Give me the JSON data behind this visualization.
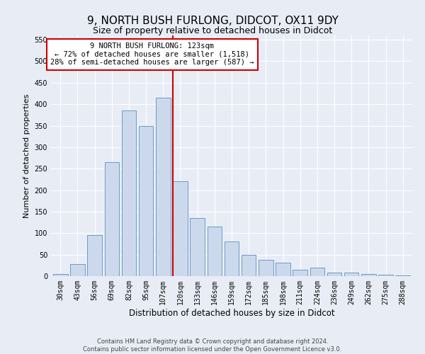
{
  "title": "9, NORTH BUSH FURLONG, DIDCOT, OX11 9DY",
  "subtitle": "Size of property relative to detached houses in Didcot",
  "xlabel": "Distribution of detached houses by size in Didcot",
  "ylabel": "Number of detached properties",
  "categories": [
    "30sqm",
    "43sqm",
    "56sqm",
    "69sqm",
    "82sqm",
    "95sqm",
    "107sqm",
    "120sqm",
    "133sqm",
    "146sqm",
    "159sqm",
    "172sqm",
    "185sqm",
    "198sqm",
    "211sqm",
    "224sqm",
    "236sqm",
    "249sqm",
    "262sqm",
    "275sqm",
    "288sqm"
  ],
  "values": [
    5,
    28,
    95,
    265,
    385,
    350,
    415,
    220,
    135,
    115,
    80,
    50,
    38,
    32,
    15,
    20,
    8,
    8,
    5,
    3,
    2
  ],
  "bar_color": "#ccd9ec",
  "bar_edge_color": "#6a9bc9",
  "vline_color": "#cc0000",
  "annotation_title": "9 NORTH BUSH FURLONG: 123sqm",
  "annotation_line1": "← 72% of detached houses are smaller (1,518)",
  "annotation_line2": "28% of semi-detached houses are larger (587) →",
  "annotation_box_edgecolor": "#cc0000",
  "ylim": [
    0,
    560
  ],
  "yticks": [
    0,
    50,
    100,
    150,
    200,
    250,
    300,
    350,
    400,
    450,
    500,
    550
  ],
  "footer1": "Contains HM Land Registry data © Crown copyright and database right 2024.",
  "footer2": "Contains public sector information licensed under the Open Government Licence v3.0.",
  "bg_color": "#e8edf5",
  "grid_color": "#ffffff",
  "title_fontsize": 11,
  "tick_fontsize": 7,
  "ylabel_fontsize": 8,
  "xlabel_fontsize": 8.5,
  "annotation_fontsize": 7.5
}
